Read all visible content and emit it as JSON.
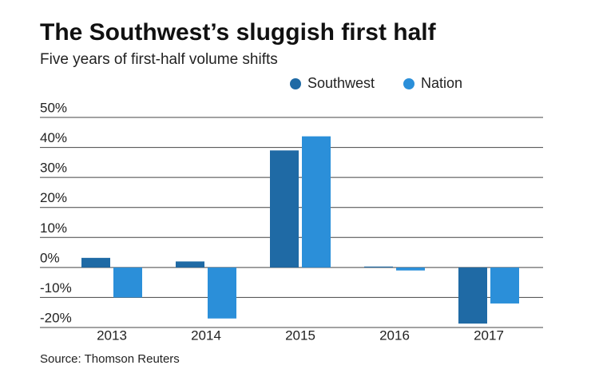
{
  "chart_data": {
    "type": "bar",
    "title": "The Southwest’s sluggish first half",
    "subtitle": "Five years of first-half volume shifts",
    "source": "Source: Thomson Reuters",
    "categories": [
      "2013",
      "2014",
      "2015",
      "2016",
      "2017"
    ],
    "series": [
      {
        "name": "Southwest",
        "color": "#1f6aa5",
        "values": [
          3.2,
          2,
          39,
          0.3,
          -18.7
        ]
      },
      {
        "name": "Nation",
        "color": "#2b8fd9",
        "values": [
          -10,
          -17,
          43.7,
          -1,
          -12
        ]
      }
    ],
    "ylim": [
      -20,
      50
    ],
    "yticks": [
      {
        "value": -20,
        "label": "-20%"
      },
      {
        "value": -10,
        "label": "-10%"
      },
      {
        "value": 0,
        "label": "0%"
      },
      {
        "value": 10,
        "label": "10%"
      },
      {
        "value": 20,
        "label": "20%"
      },
      {
        "value": 30,
        "label": "30%"
      },
      {
        "value": 40,
        "label": "40%"
      },
      {
        "value": 50,
        "label": "50%"
      }
    ],
    "grid": true
  }
}
